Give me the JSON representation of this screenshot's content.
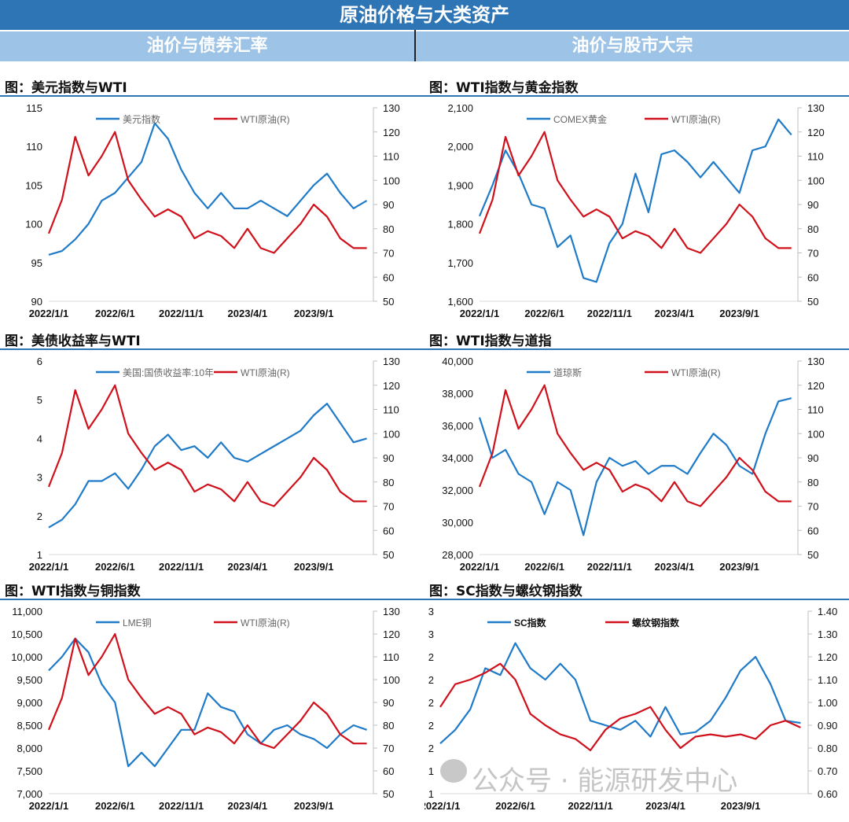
{
  "header": {
    "title": "原油价格与大类资产",
    "left_section": "油价与债券汇率",
    "right_section": "油价与股市大宗"
  },
  "watermark": "公众号 · 能源研发中心",
  "colors": {
    "blue": "#1F7BC8",
    "red": "#D0101A",
    "header": "#2E75B6",
    "subheader": "#9DC3E6"
  },
  "chart_data": [
    {
      "type": "line",
      "title": "图：美元指数与WTI",
      "x_ticks": [
        "2022/1/1",
        "2022/6/1",
        "2022/11/1",
        "2023/4/1",
        "2023/9/1"
      ],
      "x_tick_months": [
        0,
        5,
        10,
        15,
        20
      ],
      "xlim": [
        0,
        24.5
      ],
      "left_ticks": [
        "90",
        "95",
        "100",
        "105",
        "110",
        "115"
      ],
      "ylim_left": [
        90,
        115
      ],
      "right_ticks": [
        "50",
        "60",
        "70",
        "80",
        "90",
        "100",
        "110",
        "120",
        "130"
      ],
      "ylim_right": [
        50,
        130
      ],
      "series": [
        {
          "name": "美元指数",
          "axis": "left",
          "color": "#1F7BC8",
          "values": [
            96,
            96.5,
            98,
            100,
            103,
            104,
            106,
            108,
            113,
            111,
            107,
            104,
            102,
            104,
            102,
            102,
            103,
            102,
            101,
            103,
            105,
            106.5,
            104,
            102,
            103
          ]
        },
        {
          "name": "WTI原油(R)",
          "axis": "right",
          "color": "#D0101A",
          "values": [
            78,
            92,
            118,
            102,
            110,
            120,
            100,
            92,
            85,
            88,
            85,
            76,
            79,
            77,
            72,
            80,
            72,
            70,
            76,
            82,
            90,
            85,
            76,
            72,
            72
          ]
        }
      ]
    },
    {
      "type": "line",
      "title": "图：WTI指数与黄金指数",
      "x_ticks": [
        "2022/1/1",
        "2022/6/1",
        "2022/11/1",
        "2023/4/1",
        "2023/9/1"
      ],
      "x_tick_months": [
        0,
        5,
        10,
        15,
        20
      ],
      "xlim": [
        0,
        24.5
      ],
      "left_ticks": [
        "1,600",
        "1,700",
        "1,800",
        "1,900",
        "2,000",
        "2,100"
      ],
      "ylim_left": [
        1600,
        2100
      ],
      "right_ticks": [
        "50",
        "60",
        "70",
        "80",
        "90",
        "100",
        "110",
        "120",
        "130"
      ],
      "ylim_right": [
        50,
        130
      ],
      "series": [
        {
          "name": "COMEX黄金",
          "axis": "left",
          "color": "#1F7BC8",
          "values": [
            1820,
            1900,
            1990,
            1930,
            1850,
            1840,
            1740,
            1770,
            1660,
            1650,
            1750,
            1800,
            1930,
            1830,
            1980,
            1990,
            1960,
            1920,
            1960,
            1920,
            1880,
            1990,
            2000,
            2070,
            2030
          ]
        },
        {
          "name": "WTI原油(R)",
          "axis": "right",
          "color": "#D0101A",
          "values": [
            78,
            92,
            118,
            102,
            110,
            120,
            100,
            92,
            85,
            88,
            85,
            76,
            79,
            77,
            72,
            80,
            72,
            70,
            76,
            82,
            90,
            85,
            76,
            72,
            72
          ]
        }
      ]
    },
    {
      "type": "line",
      "title": "图：美债收益率与WTI",
      "x_ticks": [
        "2022/1/1",
        "2022/6/1",
        "2022/11/1",
        "2023/4/1",
        "2023/9/1"
      ],
      "x_tick_months": [
        0,
        5,
        10,
        15,
        20
      ],
      "xlim": [
        0,
        24.5
      ],
      "left_ticks": [
        "1",
        "2",
        "3",
        "4",
        "5",
        "6"
      ],
      "ylim_left": [
        1,
        6
      ],
      "right_ticks": [
        "50",
        "60",
        "70",
        "80",
        "90",
        "100",
        "110",
        "120",
        "130"
      ],
      "ylim_right": [
        50,
        130
      ],
      "series": [
        {
          "name": "美国:国债收益率:10年",
          "axis": "left",
          "color": "#1F7BC8",
          "values": [
            1.7,
            1.9,
            2.3,
            2.9,
            2.9,
            3.1,
            2.7,
            3.2,
            3.8,
            4.1,
            3.7,
            3.8,
            3.5,
            3.9,
            3.5,
            3.4,
            3.6,
            3.8,
            4.0,
            4.2,
            4.6,
            4.9,
            4.4,
            3.9,
            4.0
          ]
        },
        {
          "name": "WTI原油(R)",
          "axis": "right",
          "color": "#D0101A",
          "values": [
            78,
            92,
            118,
            102,
            110,
            120,
            100,
            92,
            85,
            88,
            85,
            76,
            79,
            77,
            72,
            80,
            72,
            70,
            76,
            82,
            90,
            85,
            76,
            72,
            72
          ]
        }
      ]
    },
    {
      "type": "line",
      "title": "图：WTI指数与道指",
      "x_ticks": [
        "2022/1/1",
        "2022/6/1",
        "2022/11/1",
        "2023/4/1",
        "2023/9/1"
      ],
      "x_tick_months": [
        0,
        5,
        10,
        15,
        20
      ],
      "xlim": [
        0,
        24.5
      ],
      "left_ticks": [
        "28,000",
        "30,000",
        "32,000",
        "34,000",
        "36,000",
        "38,000",
        "40,000"
      ],
      "ylim_left": [
        28000,
        40000
      ],
      "right_ticks": [
        "50",
        "60",
        "70",
        "80",
        "90",
        "100",
        "110",
        "120",
        "130"
      ],
      "ylim_right": [
        50,
        130
      ],
      "series": [
        {
          "name": "道琼斯",
          "axis": "left",
          "color": "#1F7BC8",
          "values": [
            36500,
            34000,
            34500,
            33000,
            32500,
            30500,
            32500,
            32000,
            29200,
            32500,
            34000,
            33500,
            33800,
            33000,
            33500,
            33500,
            33000,
            34300,
            35500,
            34800,
            33500,
            33000,
            35500,
            37500,
            37700
          ]
        },
        {
          "name": "WTI原油(R)",
          "axis": "right",
          "color": "#D0101A",
          "values": [
            78,
            92,
            118,
            102,
            110,
            120,
            100,
            92,
            85,
            88,
            85,
            76,
            79,
            77,
            72,
            80,
            72,
            70,
            76,
            82,
            90,
            85,
            76,
            72,
            72
          ]
        }
      ]
    },
    {
      "type": "line",
      "title": "图：WTI指数与铜指数",
      "x_ticks": [
        "2022/1/1",
        "2022/6/1",
        "2022/11/1",
        "2023/4/1",
        "2023/9/1"
      ],
      "x_tick_months": [
        0,
        5,
        10,
        15,
        20
      ],
      "xlim": [
        0,
        24.5
      ],
      "left_ticks": [
        "7,000",
        "7,500",
        "8,000",
        "8,500",
        "9,000",
        "9,500",
        "10,000",
        "10,500",
        "11,000"
      ],
      "ylim_left": [
        7000,
        11000
      ],
      "right_ticks": [
        "50",
        "60",
        "70",
        "80",
        "90",
        "100",
        "110",
        "120",
        "130"
      ],
      "ylim_right": [
        50,
        130
      ],
      "series": [
        {
          "name": "LME铜",
          "axis": "left",
          "color": "#1F7BC8",
          "values": [
            9700,
            10000,
            10400,
            10100,
            9400,
            9000,
            7600,
            7900,
            7600,
            8000,
            8400,
            8400,
            9200,
            8900,
            8800,
            8300,
            8100,
            8400,
            8500,
            8300,
            8200,
            8000,
            8300,
            8500,
            8400
          ]
        },
        {
          "name": "WTI原油(R)",
          "axis": "right",
          "color": "#D0101A",
          "values": [
            78,
            92,
            118,
            102,
            110,
            120,
            100,
            92,
            85,
            88,
            85,
            76,
            79,
            77,
            72,
            80,
            72,
            70,
            76,
            82,
            90,
            85,
            76,
            72,
            72
          ]
        }
      ]
    },
    {
      "type": "line",
      "title": "图：SC指数与螺纹钢指数",
      "x_ticks": [
        "2022/1/1",
        "2022/6/1",
        "2022/11/1",
        "2023/4/1",
        "2023/9/1"
      ],
      "x_tick_months": [
        0,
        5,
        10,
        15,
        20
      ],
      "xlim": [
        0,
        24.5
      ],
      "left_ticks": [
        "1",
        "1",
        "2",
        "2",
        "2",
        "2",
        "2",
        "3",
        "3"
      ],
      "ylim_left": [
        0.6,
        1.4
      ],
      "right_ticks": [
        "0.60",
        "0.70",
        "0.80",
        "0.90",
        "1.00",
        "1.10",
        "1.20",
        "1.30",
        "1.40"
      ],
      "ylim_right": [
        0.6,
        1.4
      ],
      "series": [
        {
          "name": "SC指数",
          "axis": "right",
          "color": "#1F7BC8",
          "values": [
            0.82,
            0.88,
            0.97,
            1.15,
            1.12,
            1.26,
            1.15,
            1.1,
            1.17,
            1.1,
            0.92,
            0.9,
            0.88,
            0.92,
            0.85,
            0.98,
            0.86,
            0.87,
            0.92,
            1.02,
            1.14,
            1.2,
            1.08,
            0.92,
            0.91
          ]
        },
        {
          "name": "螺纹钢指数",
          "axis": "right",
          "color": "#D0101A",
          "values": [
            0.98,
            1.08,
            1.1,
            1.13,
            1.17,
            1.1,
            0.95,
            0.9,
            0.86,
            0.84,
            0.79,
            0.88,
            0.93,
            0.95,
            0.98,
            0.88,
            0.8,
            0.85,
            0.86,
            0.85,
            0.86,
            0.84,
            0.9,
            0.92,
            0.89
          ]
        }
      ]
    }
  ]
}
